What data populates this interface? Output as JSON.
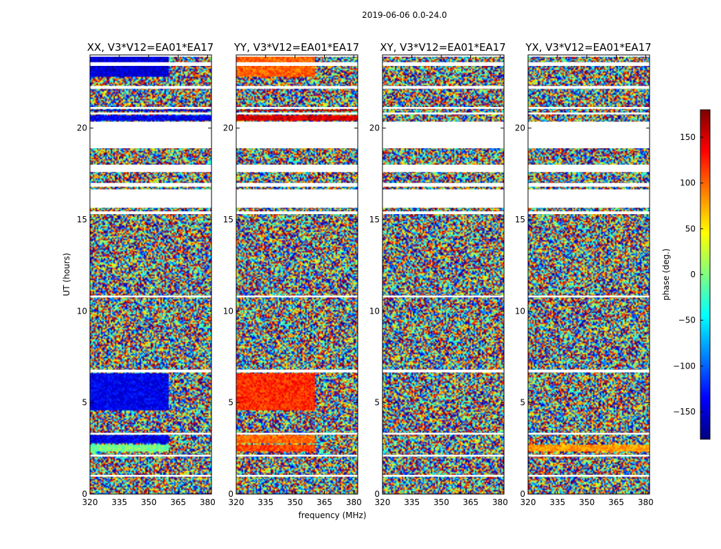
{
  "chart_data": {
    "type": "heatmap",
    "title": "2019-06-06 0.0-24.0",
    "xlabel": "frequency (MHz)",
    "ylabel": "UT (hours)",
    "xlim": [
      320,
      382
    ],
    "ylim": [
      0,
      24
    ],
    "xticks": [
      320,
      335,
      350,
      365,
      380
    ],
    "yticks": [
      0,
      5,
      10,
      15,
      20
    ],
    "colorbar": {
      "label": "phase (deg.)",
      "range": [
        -180,
        180
      ],
      "ticks": [
        150,
        100,
        50,
        0,
        -50,
        -100,
        -150
      ],
      "tick_labels": [
        "150",
        "100",
        "50",
        "0",
        "−50",
        "−100",
        "−150"
      ],
      "colormap": [
        "#00007f",
        "#0000ff",
        "#007fff",
        "#00ffff",
        "#7fff7f",
        "#ffff00",
        "#ff7f00",
        "#ff0000",
        "#7f0000"
      ]
    },
    "flagged_ut_ranges": [
      [
        0.95,
        1.05
      ],
      [
        2.05,
        2.15
      ],
      [
        3.25,
        3.35
      ],
      [
        6.65,
        6.8
      ],
      [
        10.75,
        10.85
      ],
      [
        15.3,
        15.45
      ],
      [
        15.65,
        16.65
      ],
      [
        16.8,
        17.0
      ],
      [
        17.6,
        18.0
      ],
      [
        18.9,
        20.35
      ],
      [
        20.75,
        20.85
      ],
      [
        21.05,
        21.15
      ],
      [
        22.15,
        22.3
      ],
      [
        23.4,
        23.6
      ],
      [
        23.9,
        24.0
      ]
    ],
    "panels": [
      {
        "title": "XX, V3*V12=EA01*EA17",
        "segments": [
          {
            "ut": [
              2.3,
              2.7
            ],
            "freq": [
              320,
              360
            ],
            "phase": -5
          },
          {
            "ut": [
              2.8,
              3.2
            ],
            "freq": [
              320,
              360
            ],
            "phase": -140
          },
          {
            "ut": [
              4.6,
              6.6
            ],
            "freq": [
              320,
              360
            ],
            "phase": -140
          },
          {
            "ut": [
              20.4,
              20.7
            ],
            "freq": [
              320,
              382
            ],
            "phase": -140
          },
          {
            "ut": [
              20.9,
              21.0
            ],
            "freq": [
              320,
              382
            ],
            "phase": -150
          },
          {
            "ut": [
              22.8,
              23.9
            ],
            "freq": [
              320,
              360
            ],
            "phase": -150
          }
        ]
      },
      {
        "title": "YY, V3*V12=EA01*EA17",
        "segments": [
          {
            "ut": [
              2.3,
              2.7
            ],
            "freq": [
              320,
              360
            ],
            "phase": 110
          },
          {
            "ut": [
              2.8,
              3.2
            ],
            "freq": [
              320,
              360
            ],
            "phase": 100
          },
          {
            "ut": [
              4.6,
              6.6
            ],
            "freq": [
              320,
              360
            ],
            "phase": 120
          },
          {
            "ut": [
              20.4,
              20.7
            ],
            "freq": [
              320,
              382
            ],
            "phase": 150
          },
          {
            "ut": [
              20.9,
              21.0
            ],
            "freq": [
              320,
              382
            ],
            "phase": 160
          },
          {
            "ut": [
              22.8,
              23.9
            ],
            "freq": [
              320,
              360
            ],
            "phase": 100
          }
        ]
      },
      {
        "title": "XY, V3*V12=EA01*EA17",
        "segments": []
      },
      {
        "title": "YX, V3*V12=EA01*EA17",
        "segments": [
          {
            "ut": [
              2.3,
              2.7
            ],
            "freq": [
              320,
              382
            ],
            "phase": 80
          }
        ]
      }
    ]
  }
}
